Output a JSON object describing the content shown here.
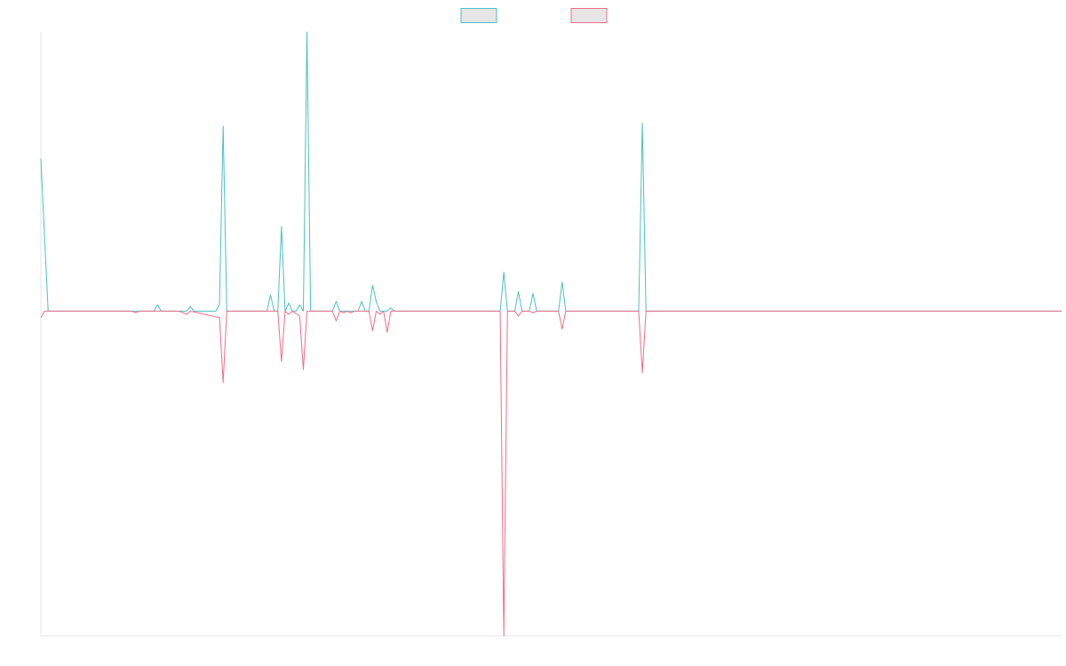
{
  "chart_data": {
    "type": "line",
    "title": "",
    "xlabel": "",
    "ylabel": "",
    "x_count": 280,
    "ylim": [
      -1.0,
      0.86
    ],
    "grid": false,
    "legend_position": "top-center",
    "series": [
      {
        "color": "#4bc0c0",
        "points": [
          [
            0,
            0.47
          ],
          [
            1,
            0.23
          ],
          [
            2,
            0
          ],
          [
            20,
            0
          ],
          [
            25,
            0
          ],
          [
            31,
            0
          ],
          [
            32,
            0.02
          ],
          [
            33,
            0
          ],
          [
            38,
            0
          ],
          [
            40,
            0
          ],
          [
            41,
            0.015
          ],
          [
            42,
            0
          ],
          [
            48,
            0
          ],
          [
            49,
            0.02
          ],
          [
            50,
            0.57
          ],
          [
            51,
            0
          ],
          [
            62,
            0
          ],
          [
            63,
            0.05
          ],
          [
            64,
            0
          ],
          [
            65,
            0
          ],
          [
            66,
            0.26
          ],
          [
            67,
            0
          ],
          [
            68,
            0.025
          ],
          [
            69,
            0
          ],
          [
            70,
            0
          ],
          [
            71,
            0.02
          ],
          [
            72,
            0
          ],
          [
            73,
            0.86
          ],
          [
            74,
            0
          ],
          [
            80,
            0
          ],
          [
            81,
            0.03
          ],
          [
            82,
            0
          ],
          [
            84,
            0
          ],
          [
            85,
            0
          ],
          [
            86,
            0
          ],
          [
            87,
            0
          ],
          [
            88,
            0.03
          ],
          [
            89,
            0
          ],
          [
            90,
            0
          ],
          [
            91,
            0.08
          ],
          [
            92,
            0.03
          ],
          [
            93,
            0
          ],
          [
            94,
            0
          ],
          [
            95,
            0
          ],
          [
            96,
            0.01
          ],
          [
            97,
            0
          ],
          [
            126,
            0
          ],
          [
            127,
            0.12
          ],
          [
            128,
            0
          ],
          [
            130,
            0
          ],
          [
            131,
            0.06
          ],
          [
            132,
            0
          ],
          [
            134,
            0
          ],
          [
            135,
            0.055
          ],
          [
            136,
            0
          ],
          [
            142,
            0
          ],
          [
            143,
            0.09
          ],
          [
            144,
            0
          ],
          [
            164,
            0
          ],
          [
            165,
            0.58
          ],
          [
            166,
            0
          ],
          [
            280,
            0
          ]
        ]
      },
      {
        "color": "#f06d8a",
        "points": [
          [
            0,
            -0.02
          ],
          [
            1,
            0
          ],
          [
            2,
            0
          ],
          [
            20,
            0
          ],
          [
            25,
            0
          ],
          [
            26,
            -0.005
          ],
          [
            27,
            0
          ],
          [
            31,
            0
          ],
          [
            32,
            0
          ],
          [
            38,
            0
          ],
          [
            39,
            -0.005
          ],
          [
            40,
            -0.01
          ],
          [
            41,
            0
          ],
          [
            49,
            -0.02
          ],
          [
            50,
            -0.22
          ],
          [
            51,
            0
          ],
          [
            65,
            0
          ],
          [
            66,
            -0.155
          ],
          [
            67,
            0
          ],
          [
            68,
            -0.01
          ],
          [
            69,
            0
          ],
          [
            71,
            -0.015
          ],
          [
            72,
            -0.18
          ],
          [
            73,
            0
          ],
          [
            80,
            0
          ],
          [
            81,
            -0.03
          ],
          [
            82,
            0
          ],
          [
            83,
            -0.005
          ],
          [
            84,
            0
          ],
          [
            85,
            -0.005
          ],
          [
            86,
            0
          ],
          [
            90,
            0
          ],
          [
            91,
            -0.06
          ],
          [
            92,
            0
          ],
          [
            93,
            -0.01
          ],
          [
            94,
            0
          ],
          [
            95,
            -0.065
          ],
          [
            96,
            0
          ],
          [
            126,
            0
          ],
          [
            127,
            -1.0
          ],
          [
            128,
            0
          ],
          [
            130,
            0
          ],
          [
            131,
            -0.015
          ],
          [
            132,
            0
          ],
          [
            134,
            0
          ],
          [
            135,
            -0.005
          ],
          [
            136,
            0
          ],
          [
            142,
            0
          ],
          [
            143,
            -0.055
          ],
          [
            144,
            0
          ],
          [
            164,
            0
          ],
          [
            165,
            -0.19
          ],
          [
            166,
            0
          ],
          [
            280,
            0
          ]
        ]
      }
    ],
    "legend": [
      {
        "color": "#4bc0c0"
      },
      {
        "color": "#f06d8a"
      }
    ]
  }
}
